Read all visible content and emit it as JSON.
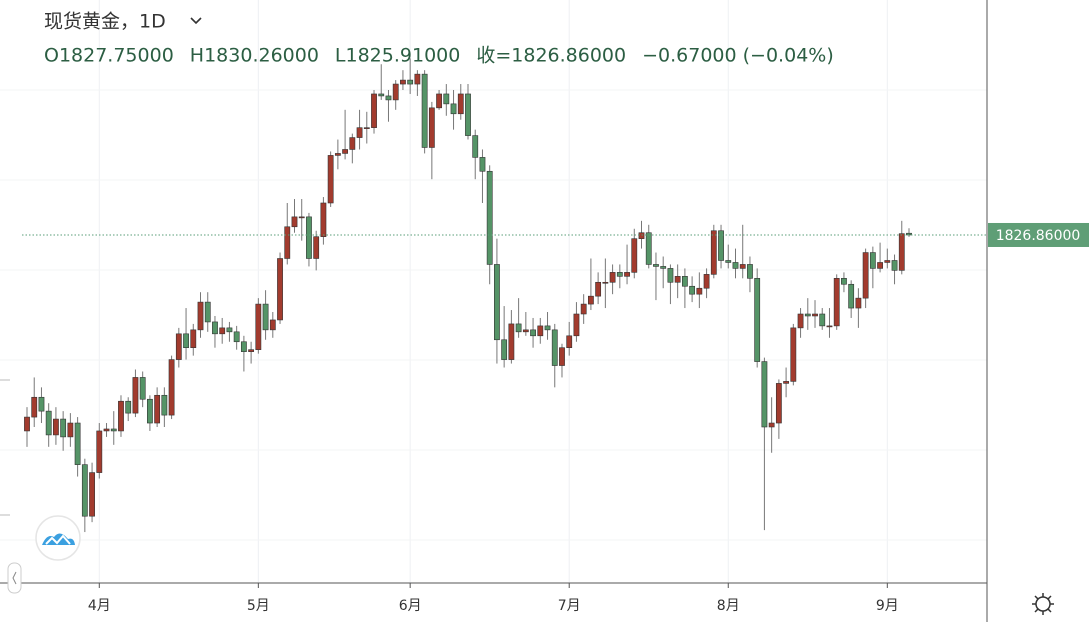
{
  "chart_data": {
    "type": "candlestick",
    "title": "现货黄金，1D",
    "header_values": [
      "O1827.75000",
      "H1830.26000",
      "L1825.91000",
      "收=1826.86000",
      "−0.67000 (−0.04%)"
    ],
    "last_price_label": "1826.86000",
    "up_color": "#a23b2e",
    "down_color": "#559467",
    "ylim": [
      1651.3,
      1945.4
    ],
    "categories": [
      null,
      null,
      null,
      null,
      null,
      null,
      null,
      null,
      null,
      null,
      "4月",
      null,
      null,
      null,
      null,
      null,
      null,
      null,
      null,
      null,
      null,
      null,
      null,
      null,
      null,
      null,
      null,
      null,
      null,
      null,
      null,
      null,
      "5月",
      null,
      null,
      null,
      null,
      null,
      null,
      null,
      null,
      null,
      null,
      null,
      null,
      null,
      null,
      null,
      null,
      null,
      null,
      null,
      null,
      "6月",
      null,
      null,
      null,
      null,
      null,
      null,
      null,
      null,
      null,
      null,
      null,
      null,
      null,
      null,
      null,
      null,
      null,
      null,
      null,
      null,
      null,
      "7月",
      null,
      null,
      null,
      null,
      null,
      null,
      null,
      null,
      null,
      null,
      null,
      null,
      null,
      null,
      null,
      null,
      null,
      null,
      null,
      null,
      null,
      "8月",
      null,
      null,
      null,
      null,
      null,
      null,
      null,
      null,
      null,
      null,
      null,
      null,
      null,
      null,
      null,
      null,
      null,
      null,
      null,
      null,
      null,
      "9月",
      null,
      null,
      null
    ],
    "open": [
      1728,
      1735,
      1745,
      1738,
      1726,
      1734,
      1725,
      1732,
      1711,
      1685,
      1707,
      1728,
      1729,
      1728,
      1743,
      1737,
      1755,
      1744,
      1732,
      1746,
      1736,
      1764,
      1777,
      1770,
      1779,
      1793,
      1783,
      1777,
      1780,
      1778,
      1773,
      1768,
      1769,
      1792,
      1779,
      1784,
      1815,
      1831,
      1836,
      1836,
      1815,
      1826,
      1843,
      1867,
      1868,
      1870,
      1876,
      1881,
      1881,
      1898,
      1897,
      1895,
      1903,
      1905,
      1903,
      1908,
      1871,
      1891,
      1898,
      1893,
      1888,
      1898,
      1877,
      1866,
      1859,
      1812,
      1774,
      1764,
      1782,
      1778,
      1779,
      1776,
      1781,
      1779,
      1761,
      1770,
      1776,
      1787,
      1792,
      1796,
      1803,
      1803,
      1808,
      1806,
      1808,
      1825,
      1828,
      1812,
      1811,
      1810,
      1803,
      1806,
      1801,
      1797,
      1800,
      1807,
      1829,
      1814,
      1813,
      1810,
      1812,
      1805,
      1763,
      1730,
      1732,
      1752,
      1753,
      1780,
      1787,
      1786,
      1787,
      1781,
      1781,
      1805,
      1802,
      1790,
      1795,
      1818,
      1810,
      1813,
      1814,
      1809,
      1827.75
    ],
    "high": [
      1740,
      1755,
      1750,
      1742,
      1740,
      1738,
      1737,
      1735,
      1714,
      1712,
      1732,
      1732,
      1738,
      1746,
      1745,
      1759,
      1758,
      1746,
      1750,
      1750,
      1766,
      1780,
      1790,
      1782,
      1798,
      1798,
      1786,
      1785,
      1783,
      1781,
      1776,
      1773,
      1795,
      1799,
      1788,
      1818,
      1843,
      1845,
      1845,
      1838,
      1829,
      1846,
      1869,
      1875,
      1890,
      1878,
      1890,
      1889,
      1900,
      1913,
      1900,
      1905,
      1910,
      1916,
      1910,
      1910,
      1894,
      1900,
      1903,
      1900,
      1903,
      1903,
      1880,
      1870,
      1862,
      1825,
      1791,
      1789,
      1795,
      1788,
      1785,
      1785,
      1788,
      1782,
      1772,
      1783,
      1793,
      1797,
      1815,
      1808,
      1815,
      1812,
      1812,
      1822,
      1830,
      1834,
      1832,
      1818,
      1816,
      1812,
      1812,
      1810,
      1806,
      1808,
      1810,
      1832,
      1832,
      1822,
      1820,
      1832,
      1816,
      1810,
      1765,
      1745,
      1754,
      1760,
      1782,
      1790,
      1795,
      1794,
      1790,
      1790,
      1807,
      1808,
      1804,
      1800,
      1820,
      1821,
      1823,
      1820,
      1817,
      1834,
      1830.26
    ],
    "low": [
      1720,
      1730,
      1732,
      1720,
      1721,
      1718,
      1720,
      1705,
      1677,
      1682,
      1704,
      1725,
      1721,
      1725,
      1733,
      1735,
      1740,
      1728,
      1730,
      1730,
      1734,
      1760,
      1764,
      1766,
      1775,
      1778,
      1770,
      1772,
      1773,
      1769,
      1758,
      1762,
      1767,
      1774,
      1775,
      1782,
      1812,
      1828,
      1824,
      1811,
      1809,
      1822,
      1841,
      1860,
      1865,
      1863,
      1870,
      1873,
      1878,
      1895,
      1884,
      1890,
      1900,
      1898,
      1897,
      1868,
      1855,
      1890,
      1887,
      1880,
      1885,
      1875,
      1855,
      1843,
      1802,
      1762,
      1760,
      1762,
      1775,
      1776,
      1770,
      1772,
      1774,
      1750,
      1755,
      1766,
      1773,
      1782,
      1789,
      1792,
      1790,
      1797,
      1800,
      1802,
      1805,
      1820,
      1810,
      1794,
      1800,
      1792,
      1795,
      1790,
      1793,
      1790,
      1795,
      1805,
      1810,
      1810,
      1805,
      1805,
      1798,
      1760,
      1678,
      1717,
      1724,
      1745,
      1751,
      1775,
      1779,
      1780,
      1779,
      1775,
      1779,
      1798,
      1785,
      1780,
      1790,
      1800,
      1808,
      1810,
      1802,
      1807,
      1825.91
    ],
    "close": [
      1735,
      1745,
      1738,
      1726,
      1734,
      1725,
      1732,
      1711,
      1685,
      1707,
      1728,
      1729,
      1728,
      1743,
      1737,
      1755,
      1744,
      1732,
      1746,
      1736,
      1764,
      1777,
      1770,
      1779,
      1793,
      1783,
      1777,
      1780,
      1778,
      1773,
      1768,
      1769,
      1792,
      1779,
      1784,
      1815,
      1831,
      1836,
      1836,
      1815,
      1826,
      1843,
      1867,
      1868,
      1870,
      1876,
      1881,
      1881,
      1898,
      1897,
      1895,
      1903,
      1905,
      1903,
      1908,
      1871,
      1891,
      1898,
      1893,
      1888,
      1898,
      1877,
      1866,
      1859,
      1812,
      1774,
      1764,
      1782,
      1778,
      1779,
      1776,
      1781,
      1779,
      1761,
      1770,
      1776,
      1787,
      1792,
      1796,
      1803,
      1803,
      1808,
      1806,
      1808,
      1825,
      1828,
      1812,
      1811,
      1810,
      1803,
      1806,
      1801,
      1797,
      1800,
      1807,
      1829,
      1814,
      1813,
      1810,
      1812,
      1805,
      1763,
      1730,
      1732,
      1752,
      1753,
      1780,
      1787,
      1786,
      1787,
      1781,
      1781,
      1805,
      1802,
      1790,
      1795,
      1818,
      1810,
      1813,
      1814,
      1809,
      1827.53,
      1826.86
    ]
  }
}
